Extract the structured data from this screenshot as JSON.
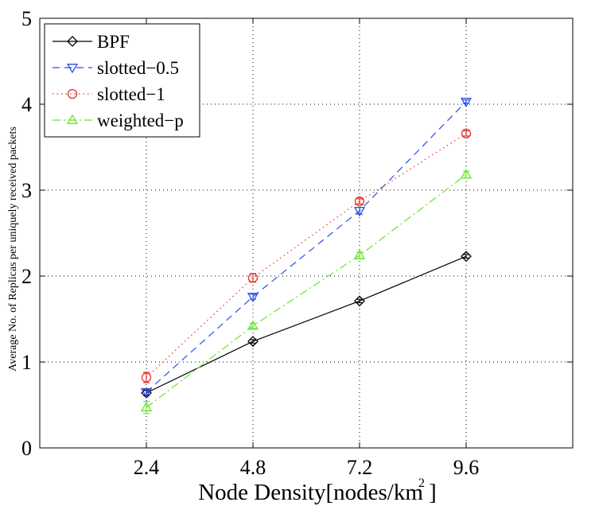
{
  "chart_data": {
    "type": "line",
    "title": "",
    "xlabel": "Node Density[nodes/km ]",
    "ylabel": "Average No. of Replicas per uniquely received packets",
    "x": [
      2.4,
      4.8,
      7.2,
      9.6
    ],
    "xticks": [
      "2.4",
      "4.8",
      "7.2",
      "9.6"
    ],
    "xlim": [
      0,
      12
    ],
    "ylim": [
      0,
      5
    ],
    "yticks": [
      "0",
      "1",
      "2",
      "3",
      "4",
      "5"
    ],
    "grid": true,
    "legend_position": "top-left",
    "series": [
      {
        "name": "BPF",
        "color": "#000000",
        "dash": "solid",
        "marker": "diamond",
        "values": [
          0.64,
          1.24,
          1.71,
          2.23
        ],
        "err": [
          0.03,
          0.02,
          0.02,
          0.02
        ]
      },
      {
        "name": "slotted−0.5",
        "color": "#2b4fe6",
        "dash": "dashed",
        "marker": "triangle-down",
        "values": [
          0.65,
          1.76,
          2.76,
          4.03
        ],
        "err": [
          0.03,
          0.03,
          0.04,
          0.02
        ]
      },
      {
        "name": "slotted−1",
        "color": "#e6302b",
        "dash": "dotted",
        "marker": "circle",
        "values": [
          0.82,
          1.98,
          2.87,
          3.66
        ],
        "err": [
          0.06,
          0.05,
          0.03,
          0.03
        ]
      },
      {
        "name": "weighted−p",
        "color": "#66e62b",
        "dash": "dashdot",
        "marker": "triangle-up",
        "values": [
          0.47,
          1.42,
          2.24,
          3.18
        ],
        "err": [
          0.07,
          0.03,
          0.04,
          0.04
        ]
      }
    ]
  }
}
